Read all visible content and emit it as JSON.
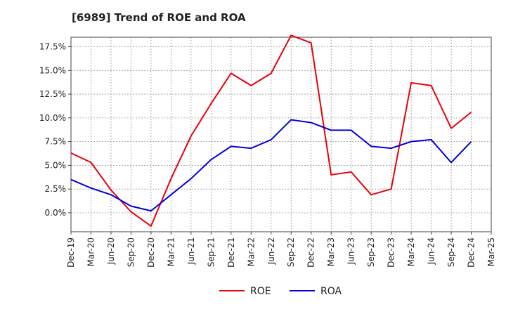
{
  "chart_data": {
    "type": "line",
    "title": "[6989]  Trend of ROE and ROA",
    "xlabel": "",
    "ylabel": "",
    "categories": [
      "Dec-19",
      "Mar-20",
      "Jun-20",
      "Sep-20",
      "Dec-20",
      "Mar-21",
      "Jun-21",
      "Sep-21",
      "Dec-21",
      "Mar-22",
      "Jun-22",
      "Sep-22",
      "Dec-22",
      "Mar-23",
      "Jun-23",
      "Sep-23",
      "Dec-23",
      "Mar-24",
      "Jun-24",
      "Sep-24",
      "Dec-24",
      "Mar-25"
    ],
    "y_ticks": [
      "0.0%",
      "2.5%",
      "5.0%",
      "7.5%",
      "10.0%",
      "12.5%",
      "15.0%",
      "17.5%"
    ],
    "ylim": [
      -2.0,
      18.5
    ],
    "grid": true,
    "legend_position": "bottom",
    "series": [
      {
        "name": "ROE",
        "color": "#e8000b",
        "values": [
          6.3,
          5.3,
          2.4,
          0.1,
          -1.4,
          3.6,
          8.1,
          11.5,
          14.7,
          13.4,
          14.7,
          18.7,
          17.9,
          4.0,
          4.3,
          1.9,
          2.5,
          13.7,
          13.4,
          8.9,
          10.6,
          null
        ]
      },
      {
        "name": "ROA",
        "color": "#0000dd",
        "values": [
          3.5,
          2.6,
          1.9,
          0.7,
          0.2,
          1.9,
          3.6,
          5.6,
          7.0,
          6.8,
          7.7,
          9.8,
          9.5,
          8.7,
          8.7,
          7.0,
          6.8,
          7.5,
          7.7,
          5.3,
          7.5,
          null
        ]
      }
    ]
  }
}
